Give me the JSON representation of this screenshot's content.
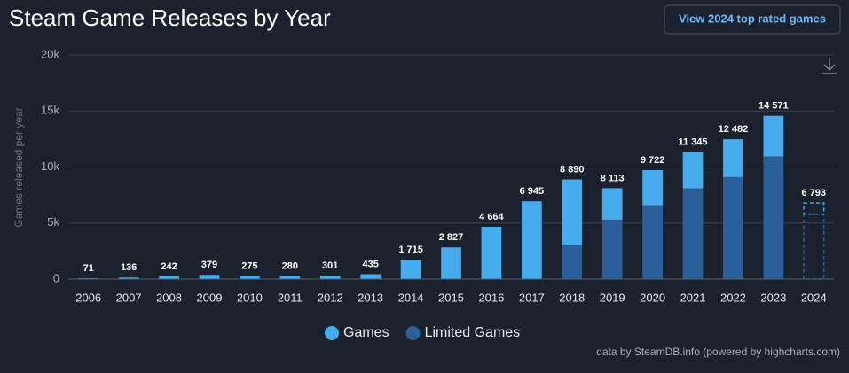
{
  "chart_data": {
    "type": "stacked_bar",
    "title": "Steam Game Releases by Year",
    "button": "View 2024 top rated games",
    "y_axis_label": "Games released per year",
    "credits": "data by SteamDB.info (powered by highcharts.com)",
    "categories": [
      "2006",
      "2007",
      "2008",
      "2009",
      "2010",
      "2011",
      "2012",
      "2013",
      "2014",
      "2015",
      "2016",
      "2017",
      "2018",
      "2019",
      "2020",
      "2021",
      "2022",
      "2023",
      "2024"
    ],
    "series": [
      {
        "name": "Limited Games",
        "color": "#2a5f99",
        "values": [
          0,
          0,
          0,
          0,
          0,
          0,
          0,
          0,
          0,
          0,
          0,
          0,
          3000,
          5300,
          6600,
          8100,
          9100,
          10950,
          5800
        ]
      },
      {
        "name": "Games",
        "color": "#46acee",
        "values": [
          71,
          136,
          242,
          379,
          275,
          280,
          301,
          435,
          1715,
          2827,
          4664,
          6945,
          5890,
          2813,
          3122,
          3245,
          3382,
          3621,
          993
        ]
      }
    ],
    "totals": [
      71,
      136,
      242,
      379,
      275,
      280,
      301,
      435,
      1715,
      2827,
      4664,
      6945,
      8890,
      8113,
      9722,
      11345,
      12482,
      14571,
      6793
    ],
    "total_labels": [
      "71",
      "136",
      "242",
      "379",
      "275",
      "280",
      "301",
      "435",
      "1 715",
      "2 827",
      "4 664",
      "6 945",
      "8 890",
      "8 113",
      "9 722",
      "11 345",
      "12 482",
      "14 571",
      "6 793"
    ],
    "dashed_categories": [
      "2024"
    ],
    "ylim": [
      0,
      20000
    ],
    "yticks": [
      0,
      {
        "value": 5000,
        "label": "5k"
      },
      {
        "value": 10000,
        "label": "10k"
      },
      {
        "value": 15000,
        "label": "15k"
      },
      {
        "value": 20000,
        "label": "20k"
      }
    ],
    "grid": true
  }
}
